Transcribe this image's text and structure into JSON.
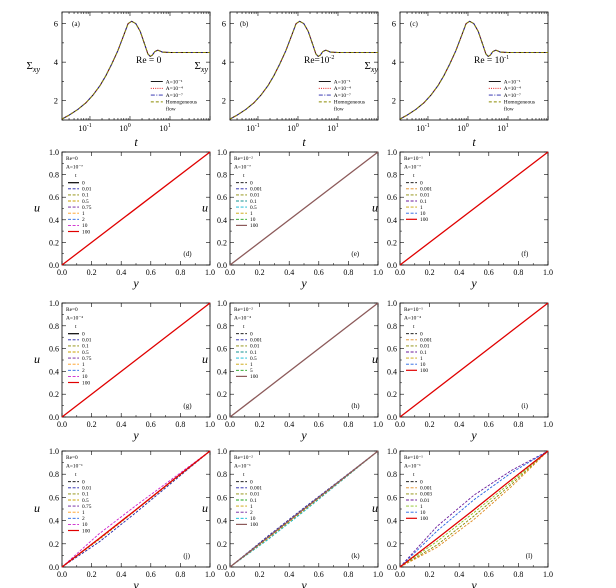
{
  "figure": {
    "colors": {
      "black": "#000000",
      "navy": "#1f1fa8",
      "olive": "#8a8a00",
      "gold": "#c8a000",
      "purple": "#6a1a9a",
      "red": "#e00000",
      "blue": "#2060e0",
      "magenta": "#cc22cc",
      "orange": "#ff9a1a",
      "teal": "#109090",
      "cyan": "#00b5d0",
      "green": "#1aa01a",
      "lightgreen": "#8ac020",
      "brown": "#8c5a5a",
      "dash_orange": "#e08a20"
    }
  },
  "chart_data": [
    {
      "id": "a",
      "type": "line",
      "panel_label": "(a)",
      "re_label": "Re = 0",
      "xscale": "log",
      "xlim": [
        0.02,
        100
      ],
      "ylim": [
        1,
        6.6
      ],
      "xlabel": "t",
      "ylabel": "Σ",
      "ylabel_sub": "xy",
      "xticks": [
        {
          "label": "10",
          "exp": "-1"
        },
        {
          "label": "10",
          "exp": "0"
        },
        {
          "label": "10",
          "exp": "1"
        }
      ],
      "yticks": [
        "2",
        "4",
        "6"
      ],
      "series": [
        {
          "name": "A=10⁻¹",
          "style": "solid",
          "color": "#000000"
        },
        {
          "name": "A=10⁻⁴",
          "style": "dotted",
          "color": "#e00000"
        },
        {
          "name": "A=10⁻⁷",
          "style": "dashdot",
          "color": "#1f1fa8"
        },
        {
          "name": "Homogeneous flow",
          "style": "dashed",
          "color": "#8a8a00"
        }
      ],
      "legend": [
        "A=10⁻¹",
        "A=10⁻⁴",
        "A=10⁻⁷",
        "Homogeneous",
        "flow"
      ],
      "legend_position": "bottom-right",
      "curve": {
        "t": [
          0.02,
          0.03,
          0.05,
          0.08,
          0.12,
          0.18,
          0.25,
          0.35,
          0.5,
          0.7,
          0.9,
          1.1,
          1.4,
          1.8,
          2.3,
          2.8,
          3.2,
          3.6,
          4.2,
          5,
          6.5,
          10,
          20,
          50,
          100
        ],
        "v": [
          1.05,
          1.25,
          1.55,
          1.9,
          2.3,
          2.8,
          3.3,
          3.9,
          4.6,
          5.4,
          6.0,
          6.12,
          6.0,
          5.6,
          4.95,
          4.42,
          4.3,
          4.36,
          4.55,
          4.62,
          4.52,
          4.5,
          4.5,
          4.5,
          4.5
        ]
      }
    },
    {
      "id": "b",
      "type": "line",
      "panel_label": "(b)",
      "re_label": "Re=10",
      "re_exp": "-2",
      "xscale": "log",
      "xlim": [
        0.02,
        100
      ],
      "ylim": [
        1,
        6.6
      ],
      "xlabel": "t",
      "ylabel": "Σ",
      "ylabel_sub": "xy",
      "xticks": [
        {
          "label": "10",
          "exp": "-1"
        },
        {
          "label": "10",
          "exp": "0"
        },
        {
          "label": "10",
          "exp": "1"
        }
      ],
      "yticks": [
        "2",
        "4",
        "6"
      ],
      "legend": [
        "A=10⁻¹",
        "A=10⁻⁴",
        "A=10⁻⁷",
        "Homogeneous",
        "flow"
      ],
      "legend_position": "bottom-right"
    },
    {
      "id": "c",
      "type": "line",
      "panel_label": "(c)",
      "re_label": "Re = 10",
      "re_exp": "-1",
      "xscale": "log",
      "xlim": [
        0.02,
        100
      ],
      "ylim": [
        1,
        6.6
      ],
      "xlabel": "t",
      "ylabel": "Σ",
      "ylabel_sub": "xy",
      "xticks": [
        {
          "label": "10",
          "exp": "-1"
        },
        {
          "label": "10",
          "exp": "0"
        },
        {
          "label": "10",
          "exp": "1"
        }
      ],
      "yticks": [
        "2",
        "4",
        "6"
      ],
      "legend": [
        "A=10⁻¹",
        "A=10⁻⁴",
        "A=10⁻⁷",
        "Homogeneous",
        "flow"
      ],
      "legend_position": "bottom-right"
    },
    {
      "id": "d",
      "type": "line",
      "panel_label": "(d)",
      "xlabel": "y",
      "ylabel": "u",
      "xlim": [
        0,
        1
      ],
      "ylim": [
        0,
        1
      ],
      "xticks": [
        "0.0",
        "0.2",
        "0.4",
        "0.6",
        "0.8",
        "1.0"
      ],
      "yticks": [
        "0.0",
        "0.2",
        "0.4",
        "0.6",
        "0.8",
        "1.0"
      ],
      "legend_header": [
        "Re=0",
        "A=10⁻⁷",
        "t"
      ],
      "legend": [
        "0",
        "0.01",
        "0.1",
        "0.5",
        "0.75",
        "1",
        "2",
        "10",
        "100"
      ],
      "legend_colors": [
        "#000000",
        "#1f1fa8",
        "#8a8a00",
        "#c8a000",
        "#6a1a9a",
        "#ff9a1a",
        "#2060e0",
        "#cc22cc",
        "#e00000"
      ],
      "legend_styles": [
        "solid",
        "dash",
        "dash",
        "dash",
        "dash",
        "dash",
        "dash",
        "dash",
        "solid"
      ],
      "lines": [
        {
          "y": [
            0,
            1
          ],
          "u": [
            0,
            1
          ],
          "color": "#e00000",
          "width": 1.3
        }
      ]
    },
    {
      "id": "e",
      "type": "line",
      "panel_label": "(e)",
      "xlabel": "y",
      "ylabel": "u",
      "xlim": [
        0,
        1
      ],
      "ylim": [
        0,
        1
      ],
      "xticks": [
        "0.0",
        "0.2",
        "0.4",
        "0.6",
        "0.8",
        "1.0"
      ],
      "yticks": [
        "0.0",
        "0.2",
        "0.4",
        "0.6",
        "0.8",
        "1.0"
      ],
      "legend_header": [
        "Re=10⁻²",
        "A=10⁻⁷",
        "t"
      ],
      "legend": [
        "0",
        "0.001",
        "0.01",
        "0.1",
        "0.5",
        "1",
        "10",
        "100"
      ],
      "legend_colors": [
        "#000000",
        "#1f1fa8",
        "#8a8a00",
        "#109090",
        "#00b5d0",
        "#c8a000",
        "#1aa01a",
        "#8c5a5a"
      ],
      "legend_styles": [
        "dash",
        "dash",
        "dash",
        "dash",
        "dash",
        "dash",
        "dash",
        "solid"
      ],
      "lines": [
        {
          "y": [
            0,
            1
          ],
          "u": [
            0,
            1
          ],
          "color": "#8c5a5a",
          "width": 1.3
        }
      ]
    },
    {
      "id": "f",
      "type": "line",
      "panel_label": "(f)",
      "xlabel": "y",
      "ylabel": "u",
      "xlim": [
        0,
        1
      ],
      "ylim": [
        0,
        1
      ],
      "xticks": [
        "0.0",
        "0.2",
        "0.4",
        "0.6",
        "0.8",
        "1.0"
      ],
      "yticks": [
        "0.0",
        "0.2",
        "0.4",
        "0.6",
        "0.8",
        "1.0"
      ],
      "legend_header": [
        "Re=10⁻¹",
        "A=10⁻⁷",
        "t"
      ],
      "legend": [
        "0",
        "0.001",
        "0.01",
        "0.1",
        "1",
        "10",
        "100"
      ],
      "legend_colors": [
        "#000000",
        "#e08a20",
        "#8a8a00",
        "#6a1a9a",
        "#c8a000",
        "#2060e0",
        "#e00000"
      ],
      "legend_styles": [
        "dash",
        "dash",
        "dash",
        "dash",
        "dash",
        "dash",
        "solid"
      ],
      "lines": [
        {
          "y": [
            0,
            1
          ],
          "u": [
            0,
            1
          ],
          "color": "#e00000",
          "width": 1.3
        }
      ]
    },
    {
      "id": "g",
      "type": "line",
      "panel_label": "(g)",
      "xlabel": "y",
      "ylabel": "u",
      "xlim": [
        0,
        1
      ],
      "ylim": [
        0,
        1
      ],
      "xticks": [
        "0.0",
        "0.2",
        "0.4",
        "0.6",
        "0.8",
        "1.0"
      ],
      "yticks": [
        "0.0",
        "0.2",
        "0.4",
        "0.6",
        "0.8",
        "1.0"
      ],
      "legend_header": [
        "Re=0",
        "A=10⁻⁴",
        "t"
      ],
      "legend": [
        "0",
        "0.01",
        "0.1",
        "0.5",
        "0.75",
        "1",
        "2",
        "10",
        "100"
      ],
      "legend_colors": [
        "#000000",
        "#1f1fa8",
        "#8a8a00",
        "#c8a000",
        "#6a1a9a",
        "#ff9a1a",
        "#2060e0",
        "#cc22cc",
        "#e00000"
      ],
      "legend_styles": [
        "solid",
        "dash",
        "dash",
        "dash",
        "dash",
        "dash",
        "dash",
        "dash",
        "solid"
      ],
      "lines": [
        {
          "y": [
            0,
            1
          ],
          "u": [
            0,
            1
          ],
          "color": "#e00000",
          "width": 1.3
        }
      ]
    },
    {
      "id": "h",
      "type": "line",
      "panel_label": "(h)",
      "xlabel": "y",
      "ylabel": "u",
      "xlim": [
        0,
        1
      ],
      "ylim": [
        0,
        1
      ],
      "xticks": [
        "0.0",
        "0.2",
        "0.4",
        "0.6",
        "0.8",
        "1.0"
      ],
      "yticks": [
        "0.0",
        "0.2",
        "0.4",
        "0.6",
        "0.8",
        "1.0"
      ],
      "legend_header": [
        "Re=10⁻²",
        "A=10⁻⁴",
        "t"
      ],
      "legend": [
        "0",
        "0.001",
        "0.01",
        "0.1",
        "0.5",
        "1",
        "5",
        "100"
      ],
      "legend_colors": [
        "#000000",
        "#1f1fa8",
        "#8a8a00",
        "#109090",
        "#00b5d0",
        "#c8a000",
        "#1aa01a",
        "#8c5a5a"
      ],
      "legend_styles": [
        "dash",
        "dash",
        "dash",
        "dash",
        "dash",
        "dash",
        "dash",
        "solid"
      ],
      "lines": [
        {
          "y": [
            0,
            1
          ],
          "u": [
            0,
            1
          ],
          "color": "#8c5a5a",
          "width": 1.3
        }
      ]
    },
    {
      "id": "i",
      "type": "line",
      "panel_label": "(i)",
      "xlabel": "y",
      "ylabel": "u",
      "xlim": [
        0,
        1
      ],
      "ylim": [
        0,
        1
      ],
      "xticks": [
        "0.0",
        "0.2",
        "0.4",
        "0.6",
        "0.8",
        "1.0"
      ],
      "yticks": [
        "0.0",
        "0.2",
        "0.4",
        "0.6",
        "0.8",
        "1.0"
      ],
      "legend_header": [
        "Re=10⁻¹",
        "A=10⁻⁴",
        "t"
      ],
      "legend": [
        "0",
        "0.001",
        "0.01",
        "0.1",
        "1",
        "10",
        "100"
      ],
      "legend_colors": [
        "#000000",
        "#e08a20",
        "#8a8a00",
        "#6a1a9a",
        "#c8a000",
        "#2060e0",
        "#e00000"
      ],
      "legend_styles": [
        "dash",
        "dash",
        "dash",
        "dash",
        "dash",
        "dash",
        "solid"
      ],
      "lines": [
        {
          "y": [
            0,
            1
          ],
          "u": [
            0,
            1
          ],
          "color": "#e00000",
          "width": 1.3
        }
      ]
    },
    {
      "id": "j",
      "type": "line",
      "panel_label": "(j)",
      "xlabel": "y",
      "ylabel": "u",
      "xlim": [
        0,
        1
      ],
      "ylim": [
        0,
        1
      ],
      "xticks": [
        "0.0",
        "0.2",
        "0.4",
        "0.6",
        "0.8",
        "1.0"
      ],
      "yticks": [
        "0.0",
        "0.2",
        "0.4",
        "0.6",
        "0.8",
        "1.0"
      ],
      "legend_header": [
        "Re=0",
        "A=10⁻¹",
        "t"
      ],
      "legend": [
        "0",
        "0.01",
        "0.1",
        "0.5",
        "0.75",
        "1",
        "2",
        "10",
        "100"
      ],
      "legend_colors": [
        "#000000",
        "#1f1fa8",
        "#8a8a00",
        "#c8a000",
        "#6a1a9a",
        "#ff9a1a",
        "#2060e0",
        "#cc22cc",
        "#e00000"
      ],
      "legend_styles": [
        "dash",
        "dash",
        "dash",
        "dash",
        "dash",
        "dash",
        "dash",
        "dash",
        "solid"
      ],
      "lines": [
        {
          "y": [
            0,
            0.25,
            0.5,
            0.75,
            1
          ],
          "u": [
            0,
            0.215,
            0.47,
            0.735,
            1
          ],
          "color": "#1f1fa8",
          "width": 0.9,
          "dash": true
        },
        {
          "y": [
            0,
            0.25,
            0.5,
            0.75,
            1
          ],
          "u": [
            0,
            0.285,
            0.53,
            0.765,
            1
          ],
          "color": "#cc22cc",
          "width": 0.9,
          "dash": true
        },
        {
          "y": [
            0,
            0.25,
            0.5,
            0.75,
            1
          ],
          "u": [
            0,
            0.235,
            0.49,
            0.745,
            1
          ],
          "color": "#c8a000",
          "width": 0.9,
          "dash": true
        },
        {
          "y": [
            0,
            0.25,
            0.5,
            0.75,
            1
          ],
          "u": [
            0,
            0.245,
            0.495,
            0.75,
            1
          ],
          "color": "#e00000",
          "width": 1.3,
          "dash": false
        }
      ]
    },
    {
      "id": "k",
      "type": "line",
      "panel_label": "(k)",
      "xlabel": "y",
      "ylabel": "u",
      "xlim": [
        0,
        1
      ],
      "ylim": [
        0,
        1
      ],
      "xticks": [
        "0.0",
        "0.2",
        "0.4",
        "0.6",
        "0.8",
        "1.0"
      ],
      "yticks": [
        "0.0",
        "0.2",
        "0.4",
        "0.6",
        "0.8",
        "1.0"
      ],
      "legend_header": [
        "Re=10⁻²",
        "A=10⁻¹",
        "t"
      ],
      "legend": [
        "0",
        "0.001",
        "0.01",
        "0.1",
        "1",
        "2",
        "10",
        "100"
      ],
      "legend_colors": [
        "#000000",
        "#1f1fa8",
        "#8a8a00",
        "#1aa01a",
        "#c8a000",
        "#6a1a9a",
        "#00b5d0",
        "#8c5a5a"
      ],
      "legend_styles": [
        "dash",
        "dash",
        "dash",
        "dash",
        "dash",
        "dash",
        "dash",
        "solid"
      ],
      "lines": [
        {
          "y": [
            0,
            0.25,
            0.5,
            0.75,
            1
          ],
          "u": [
            0,
            0.23,
            0.48,
            0.74,
            1
          ],
          "color": "#00b5d0",
          "width": 0.9,
          "dash": true
        },
        {
          "y": [
            0,
            0.25,
            0.5,
            0.75,
            1
          ],
          "u": [
            0,
            0.26,
            0.51,
            0.755,
            1
          ],
          "color": "#1f1fa8",
          "width": 0.9,
          "dash": true
        },
        {
          "y": [
            0,
            0.25,
            0.5,
            0.75,
            1
          ],
          "u": [
            0,
            0.24,
            0.49,
            0.745,
            1
          ],
          "color": "#c8a000",
          "width": 0.9,
          "dash": true
        },
        {
          "y": [
            0,
            0.25,
            0.5,
            0.75,
            1
          ],
          "u": [
            0,
            0.25,
            0.5,
            0.75,
            1
          ],
          "color": "#8c5a5a",
          "width": 1.3,
          "dash": false
        }
      ]
    },
    {
      "id": "l",
      "type": "line",
      "panel_label": "(l)",
      "xlabel": "y",
      "ylabel": "u",
      "xlim": [
        0,
        1
      ],
      "ylim": [
        0,
        1
      ],
      "xticks": [
        "0.0",
        "0.2",
        "0.4",
        "0.6",
        "0.8",
        "1.0"
      ],
      "yticks": [
        "0.0",
        "0.2",
        "0.4",
        "0.6",
        "0.8",
        "1.0"
      ],
      "legend_header": [
        "Re=10⁻¹",
        "A=10⁻¹",
        "t"
      ],
      "legend": [
        "0",
        "0.001",
        "0.003",
        "0.01",
        "1",
        "10",
        "100"
      ],
      "legend_colors": [
        "#000000",
        "#e08a20",
        "#8a8a00",
        "#6a1a9a",
        "#8ac020",
        "#2060e0",
        "#e00000"
      ],
      "legend_styles": [
        "dash",
        "dash",
        "dash",
        "dash",
        "dash",
        "dash",
        "solid"
      ],
      "lines": [
        {
          "y": [
            0,
            0.25,
            0.5,
            0.75,
            1
          ],
          "u": [
            0,
            0.35,
            0.62,
            0.83,
            1
          ],
          "color": "#6a1a9a",
          "width": 0.9,
          "dash": true
        },
        {
          "y": [
            0,
            0.25,
            0.5,
            0.75,
            1
          ],
          "u": [
            0,
            0.31,
            0.58,
            0.81,
            1
          ],
          "color": "#2060e0",
          "width": 0.9,
          "dash": true
        },
        {
          "y": [
            0,
            0.25,
            0.5,
            0.75,
            1
          ],
          "u": [
            0,
            0.19,
            0.44,
            0.71,
            1
          ],
          "color": "#8a8a00",
          "width": 0.9,
          "dash": true
        },
        {
          "y": [
            0,
            0.25,
            0.5,
            0.75,
            1
          ],
          "u": [
            0,
            0.17,
            0.41,
            0.69,
            1
          ],
          "color": "#e08a20",
          "width": 0.9,
          "dash": true
        },
        {
          "y": [
            0,
            0.25,
            0.5,
            0.75,
            1
          ],
          "u": [
            0,
            0.22,
            0.47,
            0.73,
            1
          ],
          "color": "#8ac020",
          "width": 0.9,
          "dash": true
        },
        {
          "y": [
            0,
            0.25,
            0.5,
            0.75,
            1
          ],
          "u": [
            0,
            0.245,
            0.495,
            0.75,
            1
          ],
          "color": "#e00000",
          "width": 1.3,
          "dash": false
        }
      ]
    }
  ]
}
